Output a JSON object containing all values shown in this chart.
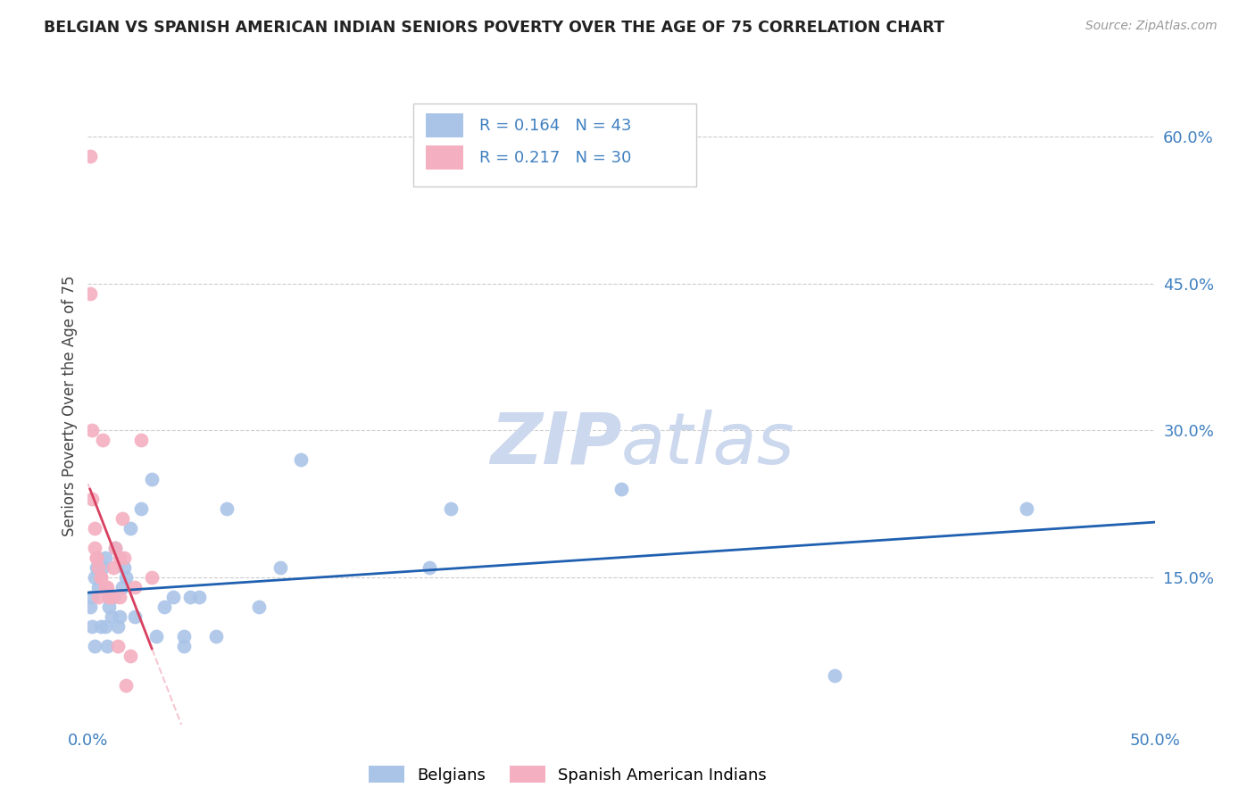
{
  "title": "BELGIAN VS SPANISH AMERICAN INDIAN SENIORS POVERTY OVER THE AGE OF 75 CORRELATION CHART",
  "source": "Source: ZipAtlas.com",
  "ylabel": "Seniors Poverty Over the Age of 75",
  "xlim": [
    0.0,
    0.5
  ],
  "ylim": [
    0.0,
    0.65
  ],
  "grid_color": "#cccccc",
  "belgian_color": "#aac4e8",
  "spanish_color": "#f4afc0",
  "belgian_trend_color": "#2060b0",
  "spanish_trend_color_solid": "#d84060",
  "spanish_trend_color_dashed": "#f0b0c0",
  "tick_color": "#4080c0",
  "title_color": "#222222",
  "source_color": "#999999",
  "watermark_color": "#ccd8ee",
  "belgian_R": 0.164,
  "belgian_N": 43,
  "spanish_R": 0.217,
  "spanish_N": 30,
  "belgians_x": [
    0.001,
    0.002,
    0.002,
    0.003,
    0.003,
    0.004,
    0.005,
    0.006,
    0.007,
    0.008,
    0.008,
    0.009,
    0.01,
    0.01,
    0.011,
    0.012,
    0.013,
    0.014,
    0.015,
    0.016,
    0.017,
    0.018,
    0.02,
    0.022,
    0.025,
    0.03,
    0.032,
    0.036,
    0.04,
    0.045,
    0.045,
    0.048,
    0.052,
    0.06,
    0.065,
    0.08,
    0.09,
    0.1,
    0.16,
    0.17,
    0.25,
    0.35,
    0.44
  ],
  "belgians_y": [
    0.12,
    0.13,
    0.1,
    0.15,
    0.08,
    0.16,
    0.14,
    0.1,
    0.16,
    0.17,
    0.1,
    0.08,
    0.12,
    0.13,
    0.11,
    0.13,
    0.18,
    0.1,
    0.11,
    0.14,
    0.16,
    0.15,
    0.2,
    0.11,
    0.22,
    0.25,
    0.09,
    0.12,
    0.13,
    0.09,
    0.08,
    0.13,
    0.13,
    0.09,
    0.22,
    0.12,
    0.16,
    0.27,
    0.16,
    0.22,
    0.24,
    0.05,
    0.22
  ],
  "spanish_x": [
    0.001,
    0.001,
    0.002,
    0.002,
    0.003,
    0.003,
    0.004,
    0.004,
    0.005,
    0.005,
    0.006,
    0.006,
    0.007,
    0.008,
    0.008,
    0.009,
    0.01,
    0.011,
    0.012,
    0.013,
    0.014,
    0.015,
    0.015,
    0.016,
    0.017,
    0.018,
    0.02,
    0.022,
    0.025,
    0.03
  ],
  "spanish_y": [
    0.58,
    0.44,
    0.3,
    0.23,
    0.2,
    0.18,
    0.17,
    0.17,
    0.16,
    0.13,
    0.15,
    0.15,
    0.29,
    0.14,
    0.14,
    0.14,
    0.13,
    0.13,
    0.16,
    0.18,
    0.08,
    0.13,
    0.17,
    0.21,
    0.17,
    0.04,
    0.07,
    0.14,
    0.29,
    0.15
  ]
}
